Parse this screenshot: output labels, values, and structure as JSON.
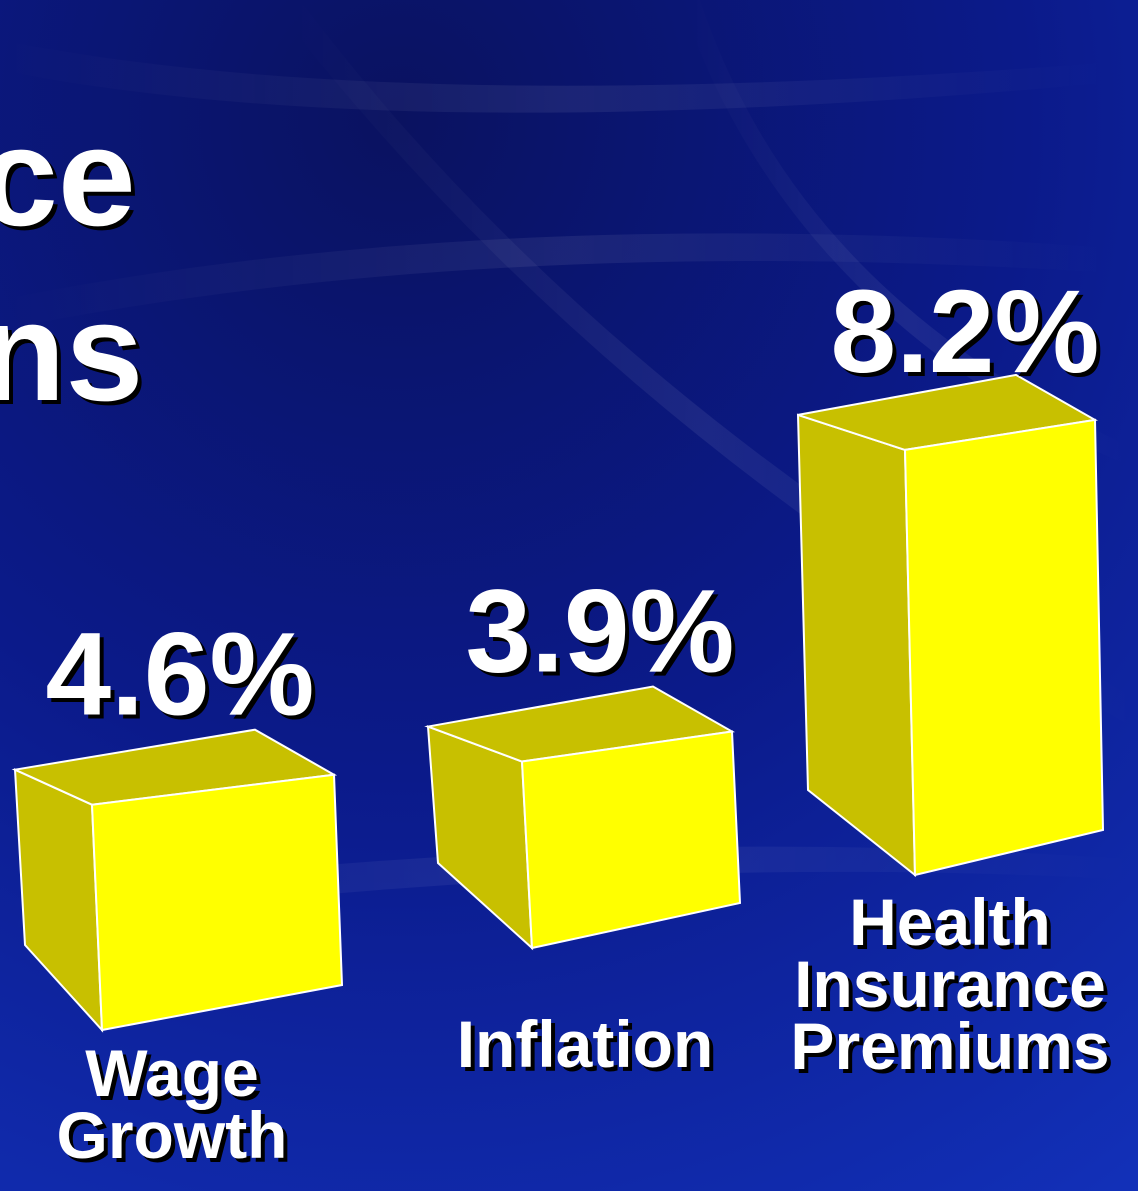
{
  "slide": {
    "title_fragment_1": "ce",
    "title_fragment_2": "ns"
  },
  "colors": {
    "background": "#0a1a8c",
    "bar_front": "#ffff00",
    "bar_side": "#c8c000",
    "bar_top": "#c8c000",
    "text": "#ffffff"
  },
  "chart_data": {
    "type": "bar",
    "style": "3d",
    "categories": [
      [
        "Wage",
        "Growth"
      ],
      [
        "Inflation"
      ],
      [
        "Health",
        "Insurance",
        "Premiums"
      ]
    ],
    "values": [
      4.6,
      3.9,
      8.2
    ],
    "value_labels": [
      "4.6%",
      "3.9%",
      "8.2%"
    ],
    "unit": "%",
    "title": "",
    "xlabel": "",
    "ylabel": "",
    "grid": false,
    "legend": "none"
  }
}
